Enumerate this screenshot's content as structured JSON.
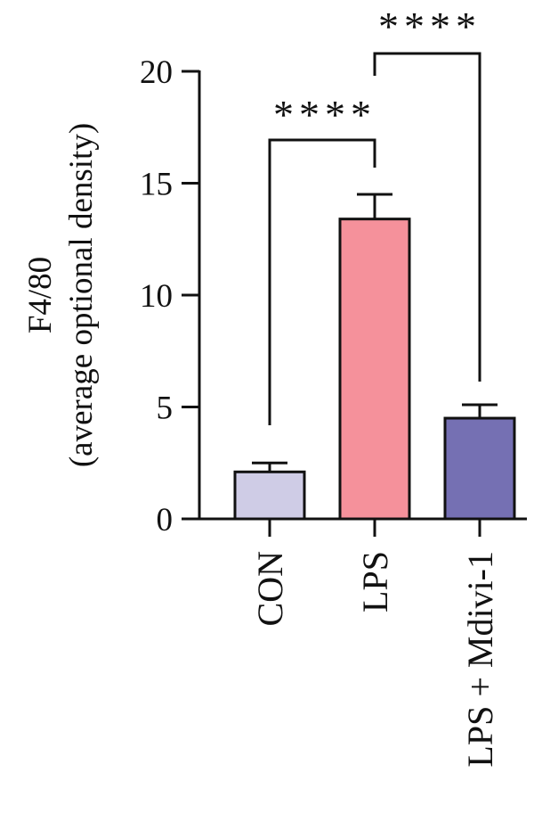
{
  "chart_data": {
    "type": "bar",
    "ylabel_lines": [
      "F4/80",
      "(average optional density)"
    ],
    "categories": [
      "CON",
      "LPS",
      "LPS + Mdivi-1"
    ],
    "values": [
      2.1,
      13.4,
      4.5
    ],
    "errors": [
      0.4,
      1.1,
      0.6
    ],
    "colors": [
      "#cfcce6",
      "#f5919b",
      "#7570b3"
    ],
    "ylim": [
      0,
      20
    ],
    "yticks": [
      "0",
      "5",
      "10",
      "15",
      "20"
    ],
    "grid": false,
    "significance": [
      {
        "from": "CON",
        "to": "LPS",
        "label": "****"
      },
      {
        "from": "LPS",
        "to": "LPS + Mdivi-1",
        "label": "****"
      }
    ]
  }
}
